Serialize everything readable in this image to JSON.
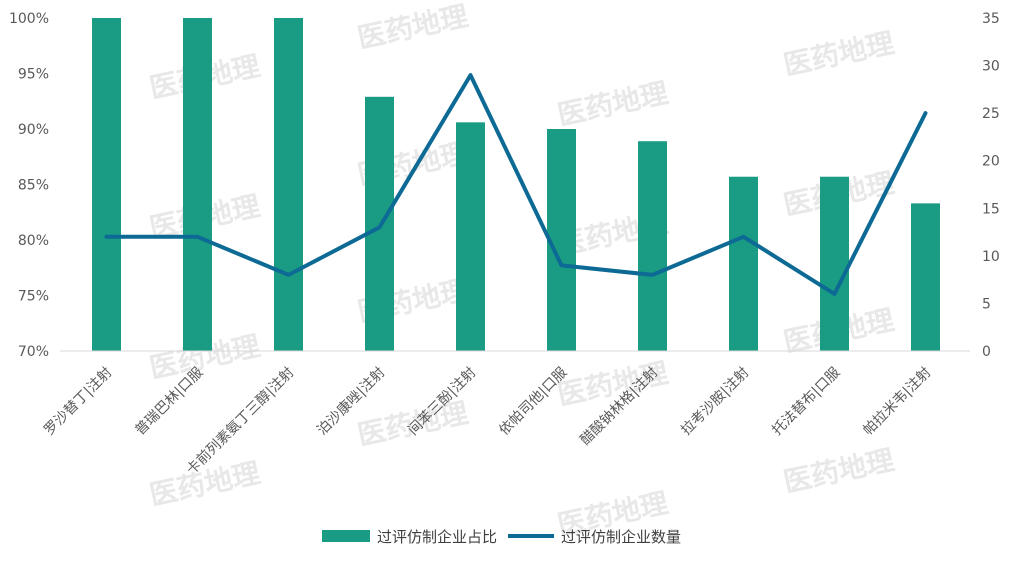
{
  "watermark": "医药地理",
  "colors": {
    "bar": "#1a9c84",
    "line": "#0d6a94",
    "axis": "#d9d9d9",
    "text": "#595959"
  },
  "chart_data": {
    "type": "bar",
    "categories": [
      "罗沙替丁|注射",
      "普瑞巴林|口服",
      "卡前列素氨丁三醇|注射",
      "泊沙康唑|注射",
      "间苯三酚|注射",
      "依帕司他|口服",
      "醋酸钠林格|注射",
      "拉考沙胺|注射",
      "托法替布|口服",
      "帕拉米韦|注射"
    ],
    "series": [
      {
        "name": "过评仿制企业占比",
        "type": "bar",
        "axis": "left",
        "values": [
          100,
          100,
          100,
          92.9,
          90.6,
          90.0,
          88.9,
          85.7,
          85.7,
          83.3
        ]
      },
      {
        "name": "过评仿制企业数量",
        "type": "line",
        "axis": "right",
        "values": [
          12,
          12,
          8,
          13,
          29,
          9,
          8,
          12,
          6,
          25
        ]
      }
    ],
    "y_left": {
      "min": 70,
      "max": 100,
      "step": 5,
      "ticks": [
        "70%",
        "75%",
        "80%",
        "85%",
        "90%",
        "95%",
        "100%"
      ]
    },
    "y_right": {
      "min": 0,
      "max": 35,
      "step": 5,
      "ticks": [
        "0",
        "5",
        "10",
        "15",
        "20",
        "25",
        "30",
        "35"
      ]
    },
    "legend_position": "bottom",
    "grid": false
  }
}
